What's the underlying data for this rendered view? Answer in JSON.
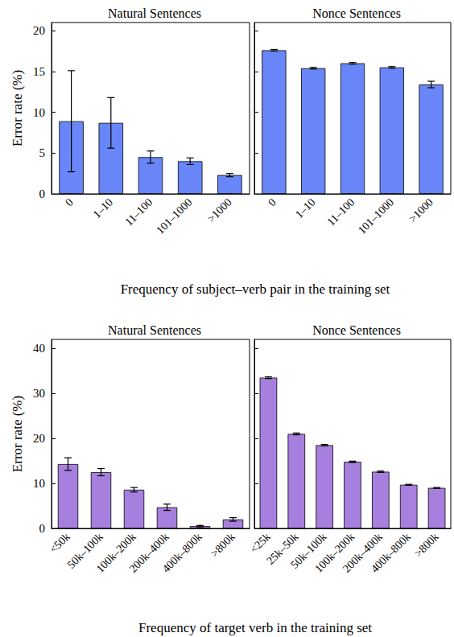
{
  "chart_data": [
    {
      "type": "bar",
      "title": "Natural Sentences",
      "ylabel": "Error rate (%)",
      "xlabel": "Frequency of subject–verb pair in the training set",
      "categories": [
        "0",
        "1–10",
        "11–100",
        "101–1000",
        ">1000"
      ],
      "values": [
        8.9,
        8.7,
        4.5,
        4.0,
        2.3
      ],
      "errors": [
        6.2,
        3.1,
        0.75,
        0.4,
        0.2
      ],
      "color": "#6886f7",
      "ylim": [
        0,
        21
      ],
      "yticks": [
        0,
        5,
        10,
        15,
        20
      ],
      "grid": false
    },
    {
      "type": "bar",
      "title": "Nonce Sentences",
      "categories": [
        "0",
        "1–10",
        "11–100",
        "101–1000",
        ">1000"
      ],
      "values": [
        17.6,
        15.4,
        16.0,
        15.5,
        13.4
      ],
      "errors": [
        0.1,
        0.1,
        0.1,
        0.1,
        0.4
      ],
      "color": "#6886f7",
      "ylim": [
        0,
        21
      ],
      "yticks": [
        0,
        5,
        10,
        15,
        20
      ],
      "grid": false,
      "tick_labels": "x"
    },
    {
      "type": "bar",
      "title": "Natural Sentences",
      "ylabel": "Error rate (%)",
      "xlabel": "Frequency of target verb in the training set",
      "categories": [
        "<50k",
        "50k–100k",
        "100k–200k",
        "200k–400k",
        "400k–800k",
        ">800k"
      ],
      "values": [
        14.3,
        12.5,
        8.6,
        4.7,
        0.5,
        2.0
      ],
      "errors": [
        1.4,
        0.8,
        0.5,
        0.7,
        0.15,
        0.4
      ],
      "color": "#a77fde",
      "ylim": [
        0,
        42
      ],
      "yticks": [
        0,
        10,
        20,
        30,
        40
      ],
      "grid": false
    },
    {
      "type": "bar",
      "title": "Nonce Sentences",
      "categories": [
        "<25k",
        "25k–50k",
        "50k–100k",
        "100k–200k",
        "200k–400k",
        "400k–800k",
        ">800k"
      ],
      "values": [
        33.5,
        21.0,
        18.5,
        14.8,
        12.6,
        9.7,
        9.0
      ],
      "errors": [
        0.2,
        0.2,
        0.15,
        0.15,
        0.15,
        0.1,
        0.1
      ],
      "color": "#a77fde",
      "ylim": [
        0,
        42
      ],
      "yticks": [
        0,
        10,
        20,
        30,
        40
      ],
      "grid": false,
      "tick_labels": "x"
    }
  ]
}
